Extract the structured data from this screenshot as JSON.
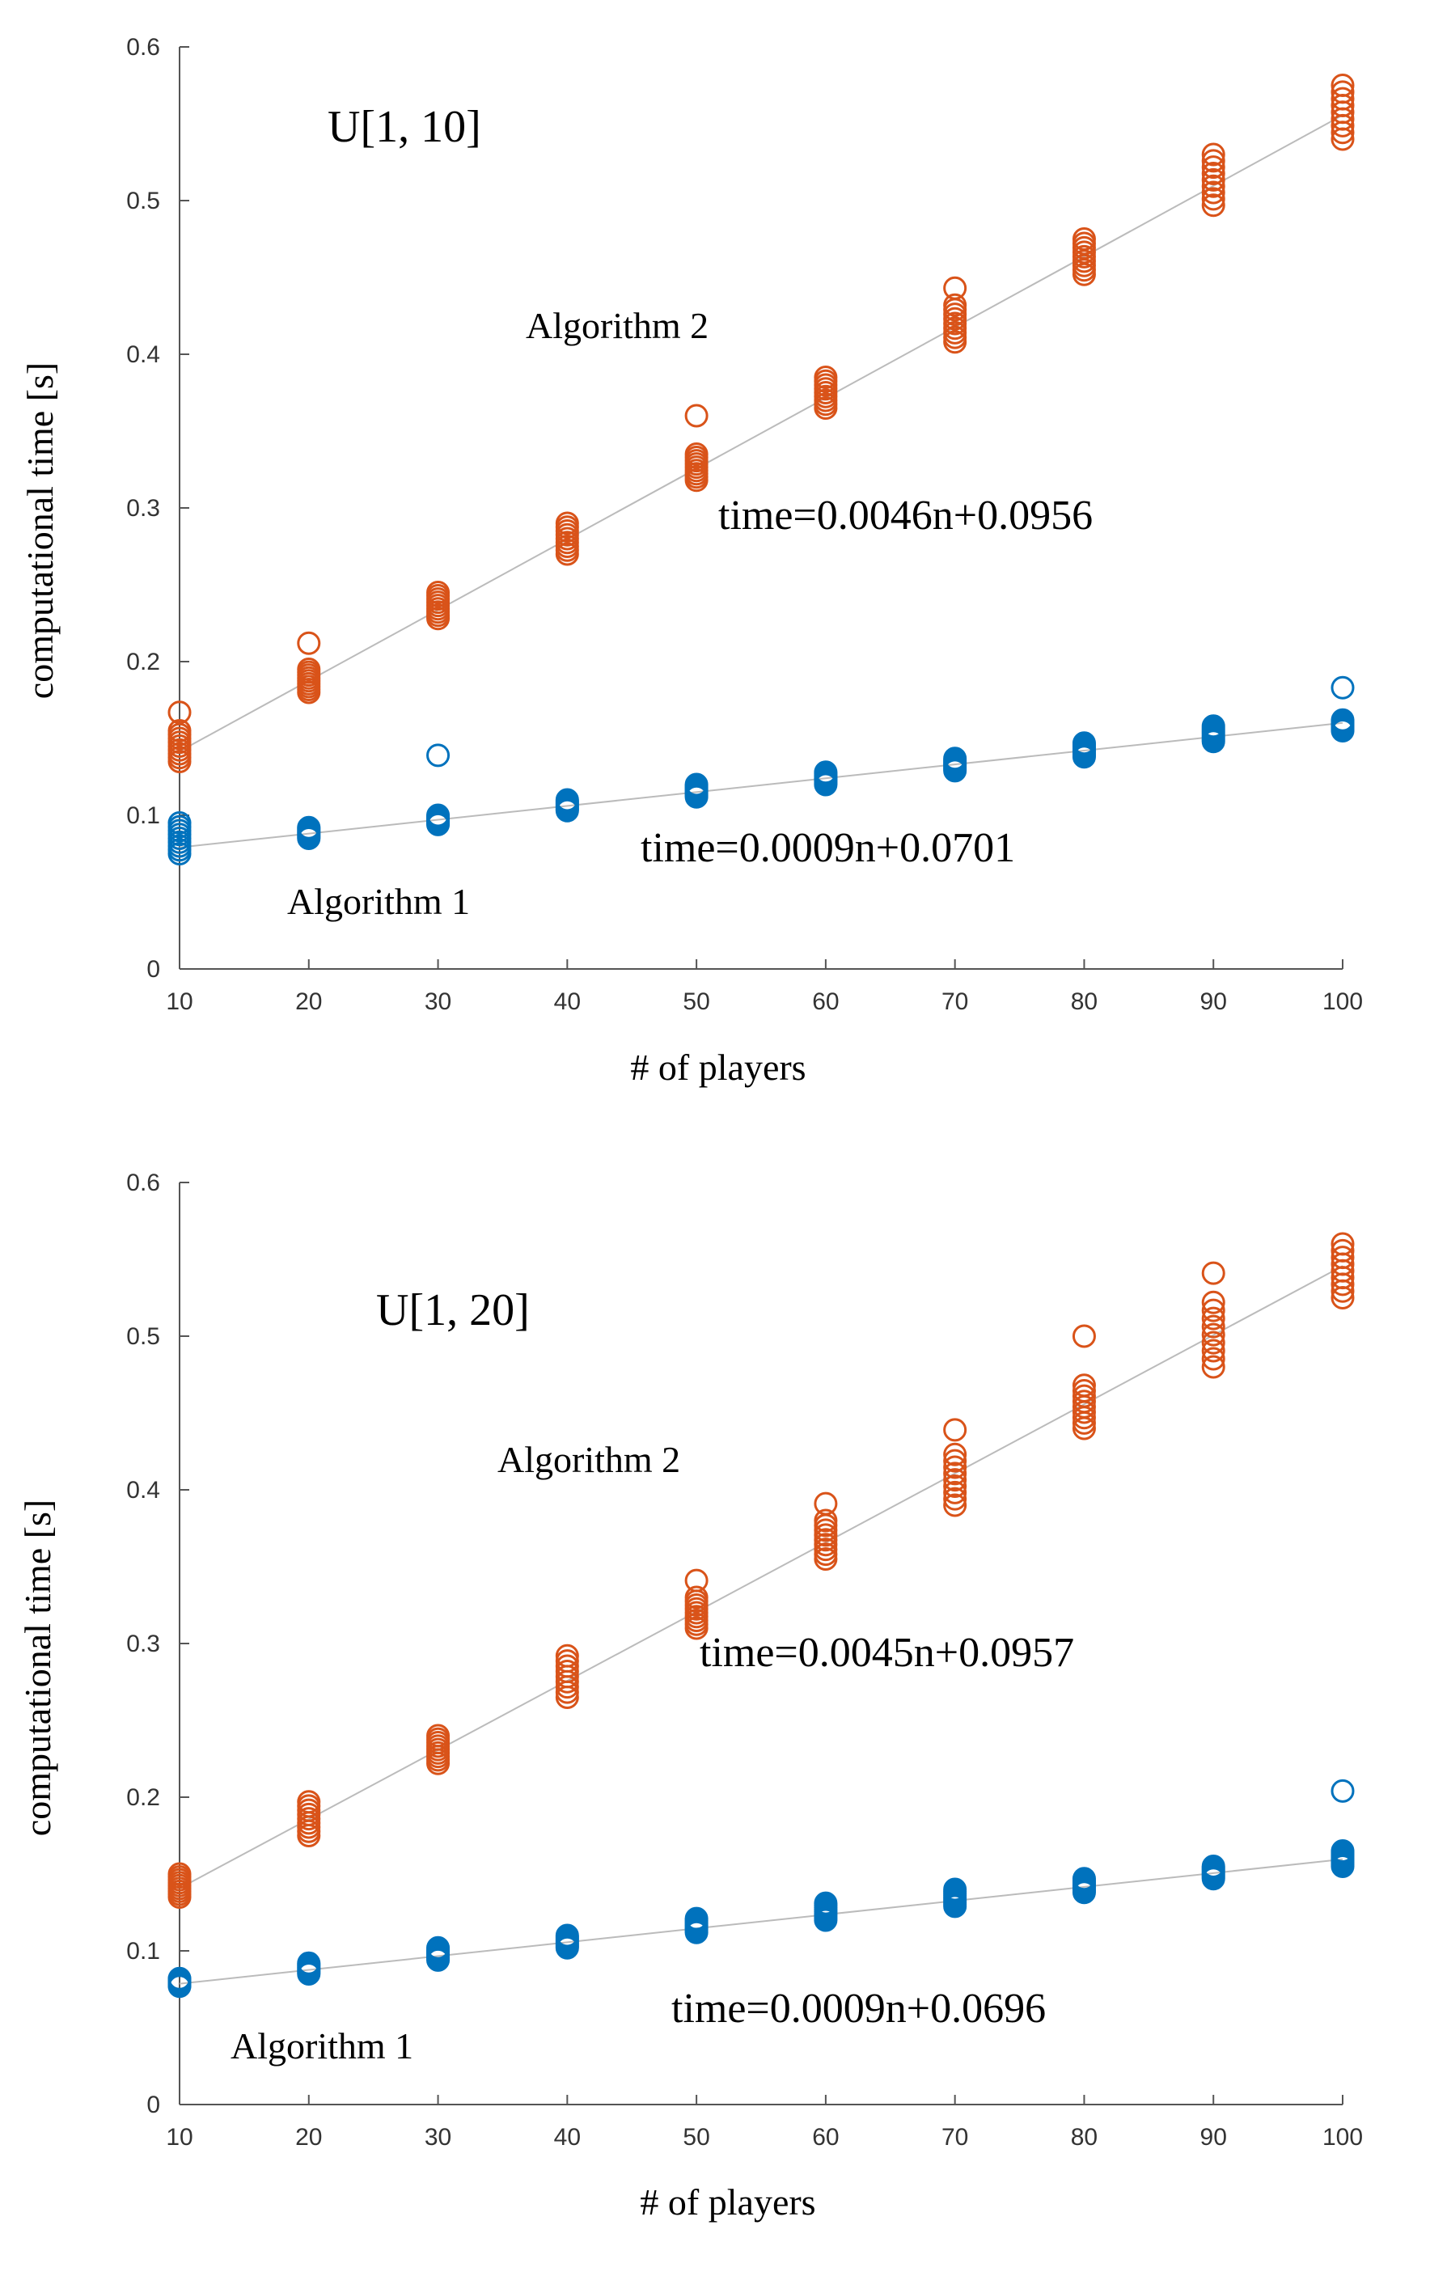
{
  "chart_data": [
    {
      "type": "scatter",
      "title": "",
      "xlabel": "# of players",
      "ylabel": "computational time [s]",
      "xlim": [
        10,
        100
      ],
      "ylim": [
        0,
        0.6
      ],
      "x_ticks": [
        "10",
        "20",
        "30",
        "40",
        "50",
        "60",
        "70",
        "80",
        "90",
        "100"
      ],
      "y_ticks": [
        "0",
        "0.1",
        "0.2",
        "0.3",
        "0.4",
        "0.5",
        "0.6"
      ],
      "grid": false,
      "annotations": {
        "distribution": "U[1, 10]",
        "algorithm2_label": "Algorithm 2",
        "algorithm1_label": "Algorithm 1",
        "fit2_label": "time=0.0046n+0.0956",
        "fit1_label": "time=0.0009n+0.0701"
      },
      "fits": [
        {
          "slope": 0.0046,
          "intercept": 0.0956,
          "color": "#d95319"
        },
        {
          "slope": 0.0009,
          "intercept": 0.0701,
          "color": "#0072bd"
        }
      ],
      "series": [
        {
          "color": "#d95319",
          "x": [
            10,
            20,
            30,
            40,
            50,
            60,
            70,
            80,
            90,
            100
          ],
          "y_min": [
            0.135,
            0.18,
            0.228,
            0.27,
            0.318,
            0.365,
            0.408,
            0.452,
            0.497,
            0.54
          ],
          "y_max": [
            0.155,
            0.195,
            0.245,
            0.29,
            0.335,
            0.385,
            0.432,
            0.475,
            0.53,
            0.575
          ],
          "outliers": [
            [
              10,
              0.167
            ],
            [
              20,
              0.212
            ],
            [
              50,
              0.36
            ],
            [
              70,
              0.443
            ]
          ]
        },
        {
          "color": "#0072bd",
          "x": [
            10,
            20,
            30,
            40,
            50,
            60,
            70,
            80,
            90,
            100
          ],
          "y_min": [
            0.075,
            0.085,
            0.094,
            0.103,
            0.112,
            0.12,
            0.129,
            0.138,
            0.148,
            0.155
          ],
          "y_max": [
            0.095,
            0.092,
            0.1,
            0.11,
            0.12,
            0.128,
            0.137,
            0.147,
            0.158,
            0.162
          ],
          "outliers": [
            [
              30,
              0.139
            ],
            [
              100,
              0.183
            ]
          ]
        }
      ]
    },
    {
      "type": "scatter",
      "title": "",
      "xlabel": "# of players",
      "ylabel": "computational time [s]",
      "xlim": [
        10,
        100
      ],
      "ylim": [
        0,
        0.6
      ],
      "x_ticks": [
        "10",
        "20",
        "30",
        "40",
        "50",
        "60",
        "70",
        "80",
        "90",
        "100"
      ],
      "y_ticks": [
        "0",
        "0.1",
        "0.2",
        "0.3",
        "0.4",
        "0.5",
        "0.6"
      ],
      "grid": false,
      "annotations": {
        "distribution": "U[1, 20]",
        "algorithm2_label": "Algorithm 2",
        "algorithm1_label": "Algorithm 1",
        "fit2_label": "time=0.0045n+0.0957",
        "fit1_label": "time=0.0009n+0.0696"
      },
      "fits": [
        {
          "slope": 0.0045,
          "intercept": 0.0957,
          "color": "#d95319"
        },
        {
          "slope": 0.0009,
          "intercept": 0.0696,
          "color": "#0072bd"
        }
      ],
      "series": [
        {
          "color": "#d95319",
          "x": [
            10,
            20,
            30,
            40,
            50,
            60,
            70,
            80,
            90,
            100
          ],
          "y_min": [
            0.135,
            0.175,
            0.222,
            0.265,
            0.31,
            0.355,
            0.39,
            0.44,
            0.48,
            0.525
          ],
          "y_max": [
            0.15,
            0.197,
            0.24,
            0.292,
            0.33,
            0.38,
            0.423,
            0.468,
            0.522,
            0.56
          ],
          "outliers": [
            [
              50,
              0.341
            ],
            [
              60,
              0.391
            ],
            [
              70,
              0.439
            ],
            [
              80,
              0.5
            ],
            [
              90,
              0.541
            ]
          ]
        },
        {
          "color": "#0072bd",
          "x": [
            10,
            20,
            30,
            40,
            50,
            60,
            70,
            80,
            90,
            100
          ],
          "y_min": [
            0.077,
            0.085,
            0.094,
            0.102,
            0.112,
            0.12,
            0.129,
            0.138,
            0.147,
            0.155
          ],
          "y_max": [
            0.082,
            0.092,
            0.102,
            0.11,
            0.121,
            0.131,
            0.14,
            0.147,
            0.155,
            0.165
          ],
          "outliers": [
            [
              100,
              0.204
            ]
          ]
        }
      ]
    }
  ]
}
